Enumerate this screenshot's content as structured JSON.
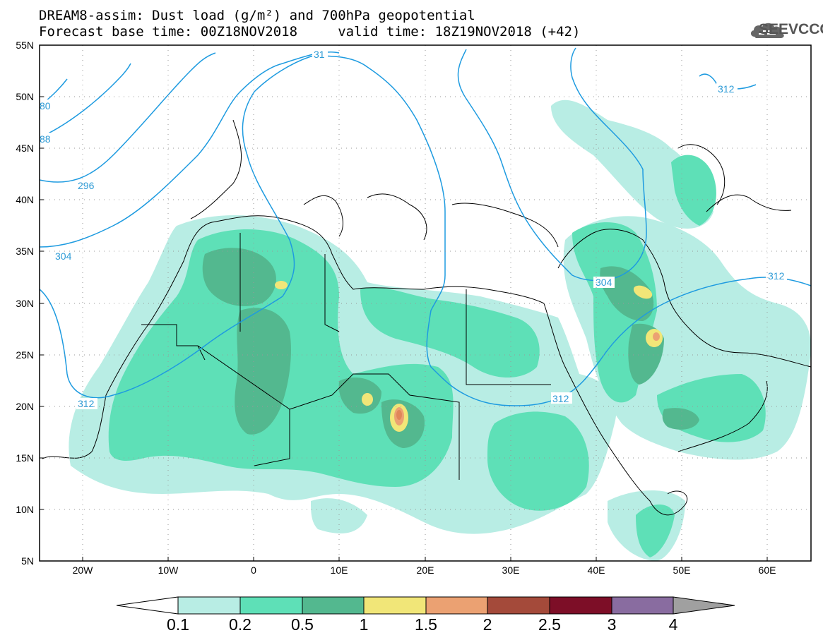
{
  "title": {
    "line1": "DREAM8-assim: Dust load (g/m²) and 700hPa geopotential",
    "line2": "Forecast base time: 00Z18NOV2018     valid time: 18Z19NOV2018 (+42)"
  },
  "logo": {
    "text": "SEEVCCC",
    "icon": "cloud-icon"
  },
  "axes": {
    "lat_labels": [
      "55N",
      "50N",
      "45N",
      "40N",
      "35N",
      "30N",
      "25N",
      "20N",
      "15N",
      "10N",
      "5N"
    ],
    "lon_labels": [
      "20W",
      "10W",
      "0",
      "10E",
      "20E",
      "30E",
      "40E",
      "50E",
      "60E"
    ],
    "lat_range": [
      5,
      55
    ],
    "lon_range": [
      -25,
      65
    ]
  },
  "contours": {
    "label_color": "#2e9bd6",
    "labels": [
      "80",
      "88",
      "296",
      "304",
      "312",
      "31",
      "312",
      "312",
      "304",
      "312",
      "312"
    ]
  },
  "colorbar": {
    "labels": [
      "0.1",
      "0.2",
      "0.5",
      "1",
      "1.5",
      "2",
      "2.5",
      "3",
      "4"
    ],
    "colors": [
      "#b8ede4",
      "#5ee0b7",
      "#53b88f",
      "#f1e678",
      "#eba172",
      "#e08659",
      "#a44a3a",
      "#7d0e27",
      "#896ca0",
      "#a0a0a0"
    ]
  }
}
